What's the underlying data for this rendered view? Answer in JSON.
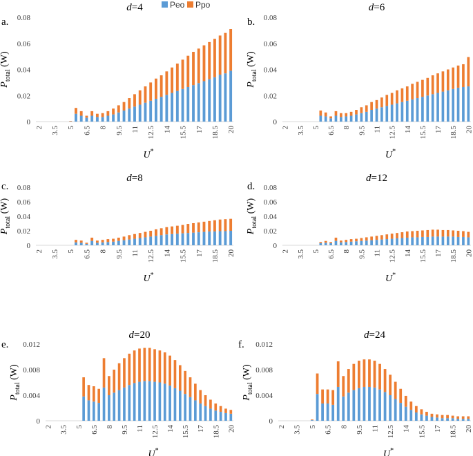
{
  "legend": {
    "peo_label": "Peo",
    "ppo_label": "Ppo",
    "peo_color": "#5B9BD5",
    "ppo_color": "#ED7D31"
  },
  "chart_data": [
    {
      "type": "bar",
      "stacked": true,
      "panel_label": "a.",
      "title_var": "d",
      "title_value": "=4",
      "xlabel_main": "U",
      "xlabel_sup": "*",
      "ylabel_main": "P",
      "ylabel_sub": "total",
      "ylabel_unit": " (W)",
      "ylim": [
        0,
        0.08
      ],
      "yticks": [
        0,
        0.02,
        0.04,
        0.06,
        0.08
      ],
      "ytick_labels": [
        "0",
        "0.02",
        "0.04",
        "0.06",
        "0.08"
      ],
      "x_start": 2,
      "x_step": 0.5,
      "n": 37,
      "xtick_labels": [
        "2",
        "3.5",
        "5",
        "6.5",
        "8",
        "9.5",
        "11",
        "12.5",
        "14",
        "15.5",
        "17",
        "18.5",
        "20"
      ],
      "series": [
        {
          "name": "Peo",
          "values": [
            0,
            0,
            0,
            0,
            0,
            0,
            0.0002,
            0.006,
            0.0045,
            0.003,
            0.0045,
            0.0035,
            0.0035,
            0.0045,
            0.0055,
            0.007,
            0.0085,
            0.01,
            0.0115,
            0.013,
            0.0145,
            0.016,
            0.0175,
            0.019,
            0.0205,
            0.022,
            0.0235,
            0.025,
            0.0265,
            0.028,
            0.0295,
            0.031,
            0.0325,
            0.034,
            0.036,
            0.037,
            0.039
          ]
        },
        {
          "name": "Ppo",
          "values": [
            0,
            0,
            0,
            0,
            0,
            0,
            0.0003,
            0.0045,
            0.0035,
            0.0015,
            0.0035,
            0.0025,
            0.003,
            0.0035,
            0.0045,
            0.0055,
            0.0065,
            0.008,
            0.0095,
            0.011,
            0.0125,
            0.014,
            0.0155,
            0.0165,
            0.018,
            0.0195,
            0.021,
            0.0225,
            0.024,
            0.0255,
            0.0265,
            0.0275,
            0.0285,
            0.0295,
            0.03,
            0.031,
            0.032
          ]
        }
      ]
    },
    {
      "type": "bar",
      "stacked": true,
      "panel_label": "b.",
      "title_var": "d",
      "title_value": "=6",
      "xlabel_main": "U",
      "xlabel_sup": "*",
      "ylabel_main": "P",
      "ylabel_sub": "total",
      "ylabel_unit": " (W)",
      "ylim": [
        0,
        0.08
      ],
      "yticks": [
        0,
        0.02,
        0.04,
        0.06,
        0.08
      ],
      "ytick_labels": [
        "0",
        "0.02",
        "0.04",
        "0.06",
        "0.08"
      ],
      "x_start": 2,
      "x_step": 0.5,
      "n": 37,
      "xtick_labels": [
        "2",
        "3.5",
        "5",
        "6.5",
        "8",
        "9.5",
        "11",
        "12.5",
        "14",
        "15.5",
        "17",
        "18.5",
        "20"
      ],
      "series": [
        {
          "name": "Peo",
          "values": [
            0,
            0,
            0,
            0,
            0,
            0,
            0,
            0.0045,
            0.004,
            0.0025,
            0.0045,
            0.0035,
            0.004,
            0.0045,
            0.0055,
            0.0065,
            0.0075,
            0.009,
            0.01,
            0.011,
            0.012,
            0.013,
            0.014,
            0.015,
            0.016,
            0.017,
            0.018,
            0.019,
            0.02,
            0.021,
            0.022,
            0.023,
            0.024,
            0.025,
            0.026,
            0.0265,
            0.027
          ]
        },
        {
          "name": "Ppo",
          "values": [
            0,
            0,
            0,
            0,
            0,
            0,
            0,
            0.004,
            0.003,
            0.0015,
            0.0035,
            0.003,
            0.0025,
            0.003,
            0.0035,
            0.0045,
            0.005,
            0.006,
            0.0065,
            0.0075,
            0.0085,
            0.009,
            0.01,
            0.0105,
            0.011,
            0.012,
            0.0125,
            0.013,
            0.0135,
            0.0145,
            0.015,
            0.0155,
            0.016,
            0.0165,
            0.017,
            0.0175,
            0.0225
          ]
        }
      ]
    },
    {
      "type": "bar",
      "stacked": true,
      "panel_label": "c.",
      "title_var": "d",
      "title_value": "=8",
      "xlabel_main": "U",
      "xlabel_sup": "*",
      "ylabel_main": "P",
      "ylabel_sub": "total",
      "ylabel_unit": " (W)",
      "ylim": [
        0,
        0.08
      ],
      "yticks": [
        0,
        0.02,
        0.04,
        0.06,
        0.08
      ],
      "ytick_labels": [
        "0",
        "0.02",
        "0.04",
        "0.06",
        "0.08"
      ],
      "x_start": 2,
      "x_step": 0.5,
      "n": 37,
      "xtick_labels": [
        "2",
        "3.5",
        "5",
        "6.5",
        "8",
        "9.5",
        "11",
        "12.5",
        "14",
        "15.5",
        "17",
        "18.5",
        "20"
      ],
      "series": [
        {
          "name": "Peo",
          "values": [
            0,
            0,
            0,
            0,
            0,
            0,
            0,
            0.004,
            0.0035,
            0.002,
            0.006,
            0.0035,
            0.004,
            0.0045,
            0.005,
            0.006,
            0.007,
            0.008,
            0.009,
            0.01,
            0.011,
            0.012,
            0.013,
            0.014,
            0.015,
            0.0155,
            0.016,
            0.0165,
            0.017,
            0.0175,
            0.018,
            0.0185,
            0.019,
            0.019,
            0.0195,
            0.0195,
            0.02
          ]
        },
        {
          "name": "Ppo",
          "values": [
            0,
            0,
            0,
            0,
            0,
            0,
            0,
            0.0035,
            0.003,
            0.0015,
            0.0045,
            0.003,
            0.0035,
            0.004,
            0.004,
            0.0045,
            0.005,
            0.006,
            0.0065,
            0.007,
            0.0075,
            0.008,
            0.009,
            0.0095,
            0.01,
            0.0105,
            0.011,
            0.0115,
            0.0125,
            0.013,
            0.0135,
            0.014,
            0.0145,
            0.0155,
            0.016,
            0.0165,
            0.0165
          ]
        }
      ]
    },
    {
      "type": "bar",
      "stacked": true,
      "panel_label": "d.",
      "title_var": "d",
      "title_value": "=12",
      "xlabel_main": "U",
      "xlabel_sup": "*",
      "ylabel_main": "P",
      "ylabel_sub": "total",
      "ylabel_unit": " (W)",
      "ylim": [
        0,
        0.08
      ],
      "yticks": [
        0,
        0.02,
        0.04,
        0.06,
        0.08
      ],
      "ytick_labels": [
        "0",
        "0.02",
        "0.04",
        "0.06",
        "0.08"
      ],
      "x_start": 2,
      "x_step": 0.5,
      "n": 37,
      "xtick_labels": [
        "2",
        "3.5",
        "5",
        "6.5",
        "8",
        "9.5",
        "11",
        "12.5",
        "14",
        "15.5",
        "17",
        "18.5",
        "20"
      ],
      "series": [
        {
          "name": "Peo",
          "values": [
            0,
            0,
            0,
            0,
            0,
            0,
            0,
            0.003,
            0.0035,
            0.003,
            0.006,
            0.004,
            0.0045,
            0.005,
            0.0055,
            0.006,
            0.0065,
            0.007,
            0.0075,
            0.008,
            0.0085,
            0.009,
            0.0095,
            0.01,
            0.0105,
            0.011,
            0.011,
            0.0115,
            0.0115,
            0.012,
            0.012,
            0.012,
            0.012,
            0.012,
            0.0115,
            0.0115,
            0.011
          ]
        },
        {
          "name": "Ppo",
          "values": [
            0,
            0,
            0,
            0,
            0,
            0,
            0,
            0.0015,
            0.0025,
            0.0015,
            0.0045,
            0.0025,
            0.003,
            0.0035,
            0.0035,
            0.004,
            0.0045,
            0.005,
            0.0055,
            0.006,
            0.0065,
            0.007,
            0.0075,
            0.008,
            0.0085,
            0.0085,
            0.009,
            0.009,
            0.0095,
            0.0095,
            0.0095,
            0.009,
            0.009,
            0.0085,
            0.0085,
            0.008,
            0.0075
          ]
        }
      ]
    },
    {
      "type": "bar",
      "stacked": true,
      "panel_label": "e.",
      "title_var": "d",
      "title_value": "=20",
      "xlabel_main": "U",
      "xlabel_sup": "*",
      "ylabel_main": "P",
      "ylabel_sub": "total",
      "ylabel_unit": " (W)",
      "ylim": [
        0,
        0.012
      ],
      "yticks": [
        0,
        0.004,
        0.008,
        0.012
      ],
      "ytick_labels": [
        "0",
        "0.004",
        "0.008",
        "0.012"
      ],
      "x_start": 2,
      "x_step": 0.5,
      "n": 37,
      "xtick_labels": [
        "2",
        "3.5",
        "5",
        "6.5",
        "8",
        "9.5",
        "11",
        "12.5",
        "14",
        "15.5",
        "17",
        "18.5",
        "20"
      ],
      "series": [
        {
          "name": "Peo",
          "values": [
            0,
            0,
            0,
            0,
            0,
            0,
            0,
            0.0038,
            0.0032,
            0.003,
            0.0028,
            0.0052,
            0.004,
            0.0044,
            0.0048,
            0.0052,
            0.0056,
            0.0059,
            0.0061,
            0.0062,
            0.0062,
            0.0061,
            0.006,
            0.0058,
            0.0055,
            0.0051,
            0.0047,
            0.0042,
            0.0037,
            0.0032,
            0.0027,
            0.0023,
            0.0019,
            0.0016,
            0.0014,
            0.0012,
            0.0011
          ]
        },
        {
          "name": "Ppo",
          "values": [
            0,
            0,
            0,
            0,
            0,
            0,
            0,
            0.003,
            0.0024,
            0.0024,
            0.0022,
            0.0046,
            0.003,
            0.0036,
            0.0042,
            0.0046,
            0.0049,
            0.0051,
            0.0052,
            0.0052,
            0.0052,
            0.0051,
            0.005,
            0.0049,
            0.0047,
            0.0044,
            0.004,
            0.0036,
            0.0031,
            0.0026,
            0.0021,
            0.0017,
            0.0014,
            0.0011,
            0.0009,
            0.0007,
            0.0006
          ]
        }
      ]
    },
    {
      "type": "bar",
      "stacked": true,
      "panel_label": "f.",
      "title_var": "d",
      "title_value": "=24",
      "xlabel_main": "U",
      "xlabel_sup": "*",
      "ylabel_main": "P",
      "ylabel_sub": "total",
      "ylabel_unit": " (W)",
      "ylim": [
        0,
        0.012
      ],
      "yticks": [
        0,
        0.004,
        0.008,
        0.012
      ],
      "ytick_labels": [
        "0",
        "0.004",
        "0.008",
        "0.012"
      ],
      "x_start": 2,
      "x_step": 0.5,
      "n": 37,
      "xtick_labels": [
        "2",
        "3.5",
        "5",
        "6.5",
        "8",
        "9.5",
        "11",
        "12.5",
        "14",
        "15.5",
        "17",
        "18.5",
        "20"
      ],
      "series": [
        {
          "name": "Peo",
          "values": [
            0,
            0,
            0,
            0,
            0,
            0,
            0.0001,
            0.0042,
            0.0027,
            0.0027,
            0.0025,
            0.0053,
            0.0038,
            0.0044,
            0.0048,
            0.0051,
            0.0053,
            0.0053,
            0.0052,
            0.0049,
            0.0045,
            0.004,
            0.0034,
            0.0028,
            0.0022,
            0.0017,
            0.0013,
            0.001,
            0.0008,
            0.0006,
            0.0005,
            0.0004,
            0.0004,
            0.0004,
            0.0003,
            0.0003,
            0.0003
          ]
        },
        {
          "name": "Ppo",
          "values": [
            0,
            0,
            0,
            0,
            0,
            0,
            0.0001,
            0.0032,
            0.0022,
            0.0022,
            0.0023,
            0.004,
            0.0032,
            0.0037,
            0.0041,
            0.0043,
            0.0043,
            0.0043,
            0.0042,
            0.004,
            0.0036,
            0.0032,
            0.0027,
            0.0022,
            0.0017,
            0.0013,
            0.001,
            0.0008,
            0.0006,
            0.0005,
            0.0005,
            0.0005,
            0.0005,
            0.0004,
            0.0004,
            0.0004,
            0.0004
          ]
        }
      ]
    }
  ]
}
